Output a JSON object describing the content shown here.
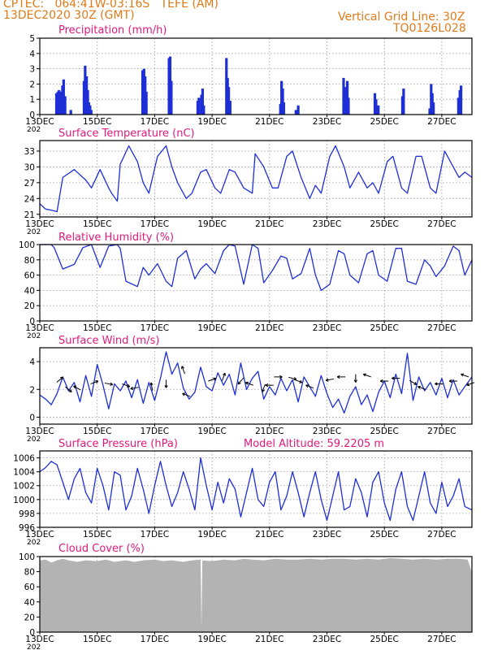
{
  "header": {
    "location": "CPTEC:   064:41W-03:16S   TEFE (AM)",
    "datetime": "13DEC2020 30Z (GMT)",
    "grid_note": "Vertical Grid Line: 30Z",
    "model_code": "TQ0126L028",
    "model_altitude": "Model Altitude: 59.2205 m"
  },
  "colors": {
    "header": "#e07b1a",
    "title": "#e0197d",
    "line": "#1e2fd6",
    "bar": "#1e2fd6",
    "cloud": "#b3b3b3",
    "grid": "#9a9a9a"
  },
  "x_axis": {
    "day_start": 13,
    "day_end": 28.05,
    "ticks": [
      {
        "day": 13,
        "label": "13DEC"
      },
      {
        "day": 15,
        "label": "15DEC"
      },
      {
        "day": 17,
        "label": "17DEC"
      },
      {
        "day": 19,
        "label": "19DEC"
      },
      {
        "day": 21,
        "label": "21DEC"
      },
      {
        "day": 23,
        "label": "23DEC"
      },
      {
        "day": 25,
        "label": "25DEC"
      },
      {
        "day": 27,
        "label": "27DEC"
      }
    ],
    "stub": "202"
  },
  "chart_data": [
    {
      "id": "precip",
      "type": "bar",
      "title": "Precipitation (mm/h)",
      "ylim": [
        0,
        5
      ],
      "yticks": [
        0,
        1,
        2,
        3,
        4,
        5
      ],
      "grid": true,
      "x": [
        13.58,
        13.63,
        13.67,
        13.75,
        13.79,
        13.83,
        13.88,
        14.08,
        14.54,
        14.58,
        14.63,
        14.67,
        14.71,
        14.75,
        14.79,
        16.58,
        16.63,
        16.67,
        16.71,
        17.5,
        17.54,
        17.58,
        18.5,
        18.54,
        18.63,
        18.67,
        18.71,
        19.5,
        19.54,
        19.58,
        19.63,
        21.38,
        21.42,
        21.46,
        21.5,
        21.92,
        22.0,
        23.58,
        23.63,
        23.67,
        23.71,
        23.75,
        24.67,
        24.71,
        24.79,
        25.63,
        25.67,
        26.58,
        26.63,
        26.67,
        26.71,
        27.58,
        27.63,
        27.67
      ],
      "values": [
        1.4,
        1.5,
        1.6,
        1.5,
        1.9,
        2.3,
        1.2,
        0.3,
        2.2,
        3.2,
        2.5,
        1.6,
        0.8,
        0.6,
        0.3,
        2.9,
        3.0,
        2.5,
        1.5,
        3.7,
        3.8,
        2.2,
        0.9,
        1.1,
        1.3,
        1.7,
        0.6,
        3.7,
        2.4,
        1.8,
        0.9,
        0.7,
        2.2,
        1.7,
        0.8,
        0.3,
        0.6,
        2.4,
        1.8,
        1.3,
        2.2,
        1.1,
        1.4,
        1.0,
        0.6,
        1.2,
        1.7,
        0.4,
        2.0,
        1.4,
        0.8,
        1.1,
        1.6,
        1.9
      ]
    },
    {
      "id": "temp",
      "type": "line",
      "title": "Surface Temperature (nC)",
      "ylim": [
        20.5,
        35
      ],
      "yticks": [
        21,
        24,
        27,
        30,
        33
      ],
      "grid": true,
      "x": [
        13,
        13.2,
        13.4,
        13.6,
        13.8,
        14.2,
        14.6,
        14.8,
        15.1,
        15.4,
        15.5,
        15.7,
        15.8,
        16.1,
        16.4,
        16.6,
        16.8,
        17.1,
        17.4,
        17.6,
        17.8,
        18.1,
        18.3,
        18.6,
        18.8,
        19.1,
        19.3,
        19.6,
        19.8,
        20.1,
        20.4,
        20.5,
        20.8,
        21.1,
        21.3,
        21.6,
        21.8,
        22.1,
        22.4,
        22.6,
        22.8,
        23.1,
        23.3,
        23.6,
        23.8,
        24.1,
        24.4,
        24.6,
        24.8,
        25.1,
        25.3,
        25.6,
        25.8,
        26.1,
        26.3,
        26.6,
        26.8,
        27.1,
        27.2,
        27.4,
        27.6,
        27.8,
        28.05
      ],
      "values": [
        23,
        22,
        21.8,
        21.5,
        28,
        29.5,
        27.5,
        26,
        29.5,
        26,
        25,
        23.5,
        30.5,
        34,
        31,
        27,
        25,
        32,
        34,
        30,
        27,
        24,
        25,
        29,
        29.5,
        26,
        25,
        29.5,
        29,
        26,
        25,
        32.5,
        30,
        26,
        26,
        32,
        33,
        28,
        24,
        26.5,
        25,
        32,
        34,
        30,
        26,
        29,
        26,
        27,
        25,
        31,
        32,
        26,
        25,
        32,
        32,
        26,
        25,
        33,
        32,
        30,
        28,
        29,
        28
      ]
    },
    {
      "id": "rh",
      "type": "line",
      "title": "Relative Humidity (%)",
      "ylim": [
        0,
        100
      ],
      "yticks": [
        0,
        20,
        40,
        60,
        80,
        100
      ],
      "grid": true,
      "x": [
        13,
        13.2,
        13.4,
        13.5,
        13.8,
        14.2,
        14.5,
        14.8,
        15.1,
        15.4,
        15.7,
        15.8,
        16,
        16.4,
        16.6,
        16.8,
        17.1,
        17.4,
        17.6,
        17.8,
        18.1,
        18.4,
        18.6,
        18.8,
        19.1,
        19.4,
        19.6,
        19.8,
        20.1,
        20.4,
        20.6,
        20.8,
        21.1,
        21.4,
        21.6,
        21.8,
        22.1,
        22.4,
        22.6,
        22.8,
        23.1,
        23.4,
        23.6,
        23.8,
        24.1,
        24.4,
        24.6,
        24.8,
        25.1,
        25.4,
        25.6,
        25.8,
        26.1,
        26.4,
        26.6,
        26.8,
        27.1,
        27.4,
        27.6,
        27.8,
        28.05
      ],
      "values": [
        100,
        100,
        100,
        96,
        68,
        74,
        96,
        100,
        70,
        98,
        100,
        95,
        52,
        45,
        70,
        60,
        75,
        52,
        45,
        82,
        92,
        55,
        68,
        75,
        62,
        92,
        100,
        98,
        48,
        100,
        95,
        50,
        66,
        85,
        82,
        55,
        62,
        95,
        60,
        40,
        48,
        92,
        88,
        60,
        50,
        88,
        92,
        60,
        52,
        95,
        95,
        52,
        48,
        80,
        72,
        58,
        72,
        98,
        92,
        60,
        80
      ]
    },
    {
      "id": "wind",
      "type": "line",
      "title": "Surface Wind (m/s)",
      "ylim": [
        -0.5,
        5
      ],
      "yticks": [
        0,
        2,
        4
      ],
      "grid": true,
      "x": [
        13,
        13.2,
        13.4,
        13.6,
        13.8,
        14,
        14.2,
        14.4,
        14.6,
        14.8,
        15,
        15.2,
        15.4,
        15.6,
        15.8,
        16,
        16.2,
        16.4,
        16.6,
        16.8,
        17,
        17.2,
        17.4,
        17.6,
        17.8,
        18,
        18.2,
        18.4,
        18.6,
        18.8,
        19,
        19.2,
        19.4,
        19.6,
        19.8,
        20,
        20.2,
        20.4,
        20.6,
        20.8,
        21,
        21.2,
        21.4,
        21.6,
        21.8,
        22,
        22.2,
        22.4,
        22.6,
        22.8,
        23,
        23.2,
        23.4,
        23.6,
        23.8,
        24,
        24.2,
        24.4,
        24.6,
        24.8,
        25,
        25.2,
        25.4,
        25.6,
        25.8,
        26,
        26.2,
        26.4,
        26.6,
        26.8,
        27,
        27.2,
        27.4,
        27.6,
        27.8,
        28.05
      ],
      "values": [
        1.6,
        1.3,
        0.9,
        1.7,
        2.9,
        1.9,
        2.5,
        1.1,
        3.0,
        1.5,
        3.8,
        2.3,
        0.6,
        2.4,
        1.9,
        2.6,
        1.4,
        2.7,
        1.0,
        2.5,
        1.2,
        2.8,
        4.7,
        3.1,
        3.9,
        2.1,
        1.3,
        1.8,
        3.6,
        2.2,
        1.9,
        3.2,
        2.3,
        3.1,
        1.6,
        3.9,
        2.0,
        2.8,
        3.3,
        1.3,
        2.2,
        1.6,
        2.8,
        1.9,
        2.7,
        1.1,
        2.9,
        2.2,
        1.5,
        3.0,
        1.7,
        0.7,
        1.3,
        0.3,
        1.5,
        2.2,
        0.9,
        1.6,
        0.4,
        1.8,
        2.6,
        1.4,
        3.1,
        1.7,
        4.6,
        1.2,
        2.9,
        1.9,
        2.5,
        1.6,
        2.8,
        1.4,
        2.7,
        1.6,
        2.2,
        2.9
      ],
      "arrows": [
        {
          "day": 13.7,
          "v": 2.7,
          "angle": -40
        },
        {
          "day": 14.0,
          "v": 2.0,
          "angle": 40
        },
        {
          "day": 14.3,
          "v": 2.1,
          "angle": -150
        },
        {
          "day": 14.9,
          "v": 2.5,
          "angle": -20
        },
        {
          "day": 15.4,
          "v": 2.4,
          "angle": 10
        },
        {
          "day": 16.0,
          "v": 2.3,
          "angle": 20
        },
        {
          "day": 16.3,
          "v": 2.1,
          "angle": 170
        },
        {
          "day": 16.9,
          "v": 2.2,
          "angle": -100
        },
        {
          "day": 17.4,
          "v": 2.4,
          "angle": 90
        },
        {
          "day": 18.0,
          "v": 3.4,
          "angle": -110
        },
        {
          "day": 18.1,
          "v": 1.6,
          "angle": -160
        },
        {
          "day": 19.0,
          "v": 2.7,
          "angle": -20
        },
        {
          "day": 19.4,
          "v": 2.9,
          "angle": -70
        },
        {
          "day": 20.0,
          "v": 2.6,
          "angle": 130
        },
        {
          "day": 20.3,
          "v": 2.4,
          "angle": -160
        },
        {
          "day": 20.8,
          "v": 2.1,
          "angle": 110
        },
        {
          "day": 21.0,
          "v": 2.3,
          "angle": 180
        },
        {
          "day": 21.3,
          "v": 2.9,
          "angle": 0
        },
        {
          "day": 21.8,
          "v": 2.8,
          "angle": 15
        },
        {
          "day": 22.0,
          "v": 2.6,
          "angle": 20
        },
        {
          "day": 22.4,
          "v": 2.2,
          "angle": 200
        },
        {
          "day": 23.1,
          "v": 2.7,
          "angle": 170
        },
        {
          "day": 23.5,
          "v": 2.9,
          "angle": 180
        },
        {
          "day": 24.0,
          "v": 2.8,
          "angle": 90
        },
        {
          "day": 24.4,
          "v": 3.0,
          "angle": 200
        },
        {
          "day": 25.0,
          "v": 2.6,
          "angle": 180
        },
        {
          "day": 25.4,
          "v": 2.8,
          "angle": 180
        },
        {
          "day": 26.0,
          "v": 2.5,
          "angle": 30
        },
        {
          "day": 26.3,
          "v": 2.1,
          "angle": 200
        },
        {
          "day": 26.9,
          "v": 2.4,
          "angle": 180
        },
        {
          "day": 27.4,
          "v": 2.6,
          "angle": 180
        },
        {
          "day": 27.8,
          "v": 3.0,
          "angle": 200
        },
        {
          "day": 28.0,
          "v": 2.4,
          "angle": 160
        }
      ]
    },
    {
      "id": "pres",
      "type": "line",
      "title": "Surface Pressure (hPa)",
      "ylim": [
        996,
        1007
      ],
      "yticks": [
        996,
        998,
        1000,
        1002,
        1004,
        1006
      ],
      "grid": true,
      "x": [
        13,
        13.2,
        13.4,
        13.6,
        13.8,
        14,
        14.2,
        14.4,
        14.6,
        14.8,
        15,
        15.2,
        15.4,
        15.6,
        15.8,
        16,
        16.2,
        16.4,
        16.6,
        16.8,
        17,
        17.2,
        17.4,
        17.6,
        17.8,
        18,
        18.2,
        18.4,
        18.6,
        18.8,
        19,
        19.2,
        19.4,
        19.6,
        19.8,
        20,
        20.2,
        20.4,
        20.6,
        20.8,
        21,
        21.2,
        21.4,
        21.6,
        21.8,
        22,
        22.2,
        22.4,
        22.6,
        22.8,
        23,
        23.2,
        23.4,
        23.6,
        23.8,
        24,
        24.2,
        24.4,
        24.6,
        24.8,
        25,
        25.2,
        25.4,
        25.6,
        25.8,
        26,
        26.2,
        26.4,
        26.6,
        26.8,
        27,
        27.2,
        27.4,
        27.6,
        27.8,
        28.05
      ],
      "values": [
        1004,
        1004.6,
        1005.5,
        1005.0,
        1002.5,
        1000.0,
        1003.0,
        1004.5,
        1001.0,
        999.5,
        1004.5,
        1002.0,
        998.5,
        1004.0,
        1003.5,
        998.5,
        1000.5,
        1004.5,
        1001.5,
        998.0,
        1002.0,
        1005.5,
        1002.0,
        999.0,
        1001.0,
        1004.0,
        1001.5,
        998.5,
        1006.0,
        1002.0,
        998.5,
        1002.5,
        999.5,
        1003.0,
        1001.5,
        997.5,
        1001.0,
        1004.5,
        1000.0,
        999.0,
        1002.5,
        1004.0,
        998.5,
        1000.5,
        1004.0,
        1001.0,
        997.5,
        1001.0,
        1004.0,
        1000.0,
        997.0,
        1000.5,
        1004.0,
        998.5,
        999.0,
        1003.0,
        1001.0,
        997.5,
        1002.5,
        1004.0,
        999.5,
        997.0,
        1001.5,
        1004.0,
        999.0,
        997.0,
        1000.5,
        1004.0,
        999.5,
        998.0,
        1002.5,
        999.0,
        1000.5,
        1003.0,
        999.0,
        998.5
      ]
    },
    {
      "id": "cloud",
      "type": "area",
      "title": "Cloud Cover (%)",
      "ylim": [
        0,
        100
      ],
      "yticks": [
        0,
        20,
        40,
        60,
        80,
        100
      ],
      "grid": true,
      "x": [
        13,
        13.2,
        13.4,
        13.6,
        13.8,
        14,
        14.3,
        14.6,
        15,
        15.3,
        15.6,
        16,
        16.3,
        16.6,
        17,
        17.3,
        17.6,
        18,
        18.3,
        18.6,
        18.63,
        18.66,
        19,
        19.4,
        19.8,
        20.1,
        20.4,
        20.8,
        21.2,
        21.6,
        22,
        22.4,
        22.8,
        23.2,
        23.6,
        24,
        24.4,
        24.8,
        25.2,
        25.6,
        26,
        26.4,
        26.8,
        27.2,
        27.6,
        27.9,
        28.05
      ],
      "values": [
        95,
        96,
        92,
        95,
        97,
        95,
        93,
        95,
        94,
        96,
        93,
        95,
        93,
        95,
        96,
        94,
        95,
        93,
        95,
        96,
        3,
        95,
        94,
        96,
        95,
        97,
        96,
        95,
        97,
        96,
        96,
        97,
        96,
        97,
        97,
        96,
        97,
        96,
        98,
        97,
        96,
        97,
        96,
        97,
        97,
        96,
        79
      ]
    }
  ]
}
